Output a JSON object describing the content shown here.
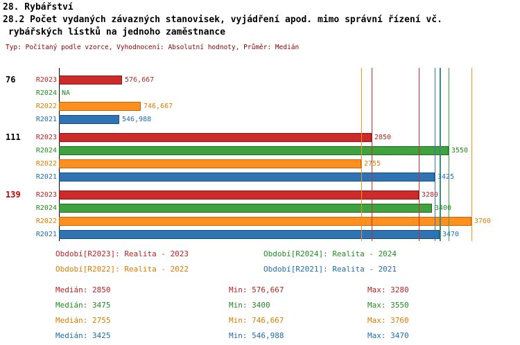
{
  "header": {
    "title_line1": "28. Rybářství",
    "title_line2": "28.2 Počet vydaných závazných stanovisek, vyjádření apod. mimo správní řízení vč.",
    "title_line3": "rybářských lístků na jednoho zaměstnance",
    "meta_line": "Typ: Počítaný podle vzorce, Vyhodnocení: Absolutní hodnoty, Průměr: Medián"
  },
  "chart_data": {
    "type": "bar",
    "orientation": "horizontal",
    "x_range": [
      0,
      3900
    ],
    "grid": false,
    "series": [
      {
        "id": "R2023",
        "label": "R2023",
        "color": "#cd2a2a",
        "border": "#8b1515",
        "text_color": "#bb2222"
      },
      {
        "id": "R2024",
        "label": "R2024",
        "color": "#3fa23f",
        "border": "#1e6b1e",
        "text_color": "#228b22"
      },
      {
        "id": "R2022",
        "label": "R2022",
        "color": "#ff8f1f",
        "border": "#c86400",
        "text_color": "#e07b00"
      },
      {
        "id": "R2021",
        "label": "R2021",
        "color": "#2e74b5",
        "border": "#1a4d7a",
        "text_color": "#1f6cb0"
      }
    ],
    "groups": [
      {
        "label": "76",
        "label_color": "#000000",
        "values": [
          {
            "series": "R2023",
            "value": 576.667,
            "display": "576,667"
          },
          {
            "series": "R2024",
            "value": null,
            "display": "NA"
          },
          {
            "series": "R2022",
            "value": 746.667,
            "display": "746,667"
          },
          {
            "series": "R2021",
            "value": 546.988,
            "display": "546,988"
          }
        ]
      },
      {
        "label": "111",
        "label_color": "#000000",
        "values": [
          {
            "series": "R2023",
            "value": 2850,
            "display": "2850"
          },
          {
            "series": "R2024",
            "value": 3550,
            "display": "3550"
          },
          {
            "series": "R2022",
            "value": 2755,
            "display": "2755"
          },
          {
            "series": "R2021",
            "value": 3425,
            "display": "3425"
          }
        ]
      },
      {
        "label": "139",
        "label_color": "#cc0000",
        "values": [
          {
            "series": "R2023",
            "value": 3280,
            "display": "3280"
          },
          {
            "series": "R2024",
            "value": 3400,
            "display": "3400"
          },
          {
            "series": "R2022",
            "value": 3760,
            "display": "3760"
          },
          {
            "series": "R2021",
            "value": 3470,
            "display": "3470"
          }
        ]
      }
    ],
    "reference_lines": [
      {
        "series": "R2022",
        "kind": "median",
        "value": 2755
      },
      {
        "series": "R2023",
        "kind": "median",
        "value": 2850
      },
      {
        "series": "R2023",
        "kind": "max",
        "value": 3280
      },
      {
        "series": "R2021",
        "kind": "median",
        "value": 3425
      },
      {
        "series": "R2021",
        "kind": "max",
        "value": 3470
      },
      {
        "series": "R2024",
        "kind": "median",
        "value": 3475
      },
      {
        "series": "R2024",
        "kind": "max",
        "value": 3550
      },
      {
        "series": "R2022",
        "kind": "max",
        "value": 3760
      }
    ],
    "stat_labels": {
      "median": "Medián",
      "min": "Min",
      "max": "Max"
    },
    "stats": [
      {
        "series": "R2023",
        "median": "2850",
        "min": "576,667",
        "max": "3280"
      },
      {
        "series": "R2024",
        "median": "3475",
        "min": "3400",
        "max": "3550"
      },
      {
        "series": "R2022",
        "median": "2755",
        "min": "746,667",
        "max": "3760"
      },
      {
        "series": "R2021",
        "median": "3425",
        "min": "546,988",
        "max": "3470"
      }
    ]
  },
  "legend": [
    {
      "series": "R2023",
      "text": "Období[R2023]: Realita - 2023",
      "column": 0,
      "row": 0
    },
    {
      "series": "R2024",
      "text": "Období[R2024]: Realita - 2024",
      "column": 1,
      "row": 0
    },
    {
      "series": "R2022",
      "text": "Období[R2022]: Realita - 2022",
      "column": 0,
      "row": 1
    },
    {
      "series": "R2021",
      "text": "Období[R2021]: Realita - 2021",
      "column": 1,
      "row": 1
    }
  ]
}
